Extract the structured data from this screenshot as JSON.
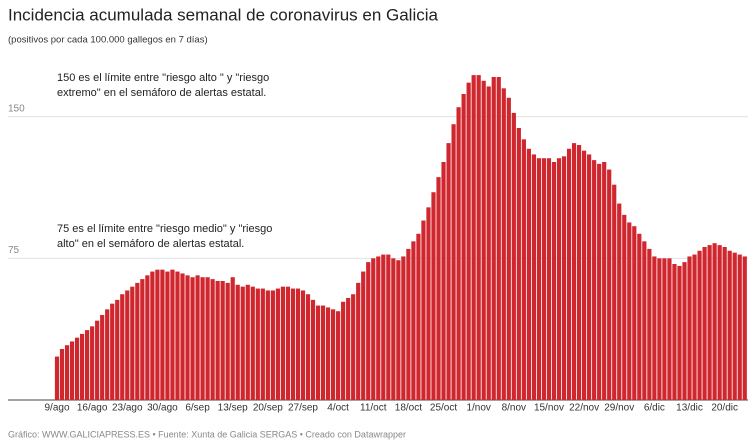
{
  "chart_data": {
    "type": "bar",
    "title": "Incidencia acumulada semanal de coronavirus en Galicia",
    "subtitle": "(positivos por cada 100.000 gallegos en 7 días)",
    "footer": "Gráfico: WWW.GALICIAPRESS.ES • Fuente: Xunta de Galicia SERGAS • Creado con Datawrapper",
    "annotations": [
      [
        "150 es el límite entre \"riesgo alto \" y \"riesgo",
        "extremo\" en el semáforo de alertas estatal."
      ],
      [
        "75 es el límite entre \"riesgo medio\" y \"riesgo",
        "alto\" en el semáforo de alertas estatal."
      ]
    ],
    "color": "#d0262d",
    "ylim": [
      0,
      180
    ],
    "yticks": [
      75,
      150
    ],
    "grid": true,
    "categories": [
      "9/ago",
      null,
      null,
      null,
      null,
      null,
      null,
      "16/ago",
      null,
      null,
      null,
      null,
      null,
      null,
      "23/ago",
      null,
      null,
      null,
      null,
      null,
      null,
      "30/ago",
      null,
      null,
      null,
      null,
      null,
      null,
      "6/sep",
      null,
      null,
      null,
      null,
      null,
      null,
      "13/sep",
      null,
      null,
      null,
      null,
      null,
      null,
      "20/sep",
      null,
      null,
      null,
      null,
      null,
      null,
      "27/sep",
      null,
      null,
      null,
      null,
      null,
      null,
      "4/oct",
      null,
      null,
      null,
      null,
      null,
      null,
      "11/oct",
      null,
      null,
      null,
      null,
      null,
      null,
      "18/oct",
      null,
      null,
      null,
      null,
      null,
      null,
      "25/oct",
      null,
      null,
      null,
      null,
      null,
      null,
      "1/nov",
      null,
      null,
      null,
      null,
      null,
      null,
      "8/nov",
      null,
      null,
      null,
      null,
      null,
      null,
      "15/nov",
      null,
      null,
      null,
      null,
      null,
      null,
      "22/nov",
      null,
      null,
      null,
      null,
      null,
      null,
      "29/nov",
      null,
      null,
      null,
      null,
      null,
      null,
      "6/dic",
      null,
      null,
      null,
      null,
      null,
      null,
      "13/dic",
      null,
      null,
      null,
      null,
      null,
      null,
      "20/dic",
      null,
      null,
      null,
      null
    ],
    "values": [
      23,
      27,
      29,
      31,
      33,
      35,
      37,
      39,
      42,
      45,
      48,
      51,
      53,
      56,
      58,
      60,
      62,
      64,
      66,
      68,
      69,
      69,
      68,
      69,
      68,
      67,
      66,
      65,
      66,
      65,
      65,
      64,
      63,
      63,
      62,
      65,
      61,
      60,
      61,
      60,
      59,
      59,
      58,
      58,
      59,
      60,
      60,
      59,
      59,
      58,
      56,
      53,
      50,
      50,
      49,
      48,
      47,
      52,
      54,
      56,
      62,
      68,
      73,
      75,
      76,
      77,
      77,
      75,
      74,
      76,
      80,
      84,
      88,
      95,
      102,
      110,
      118,
      126,
      136,
      146,
      155,
      162,
      168,
      172,
      172,
      169,
      166,
      171,
      171,
      165,
      160,
      152,
      144,
      138,
      133,
      130,
      128,
      128,
      128,
      126,
      128,
      129,
      133,
      136,
      135,
      132,
      130,
      127,
      125,
      126,
      122,
      114,
      104,
      98,
      94,
      92,
      88,
      84,
      80,
      76,
      75,
      75,
      75,
      72,
      71,
      73,
      76,
      77,
      79,
      81,
      82,
      83,
      82,
      81,
      79,
      78,
      77,
      76
    ]
  }
}
